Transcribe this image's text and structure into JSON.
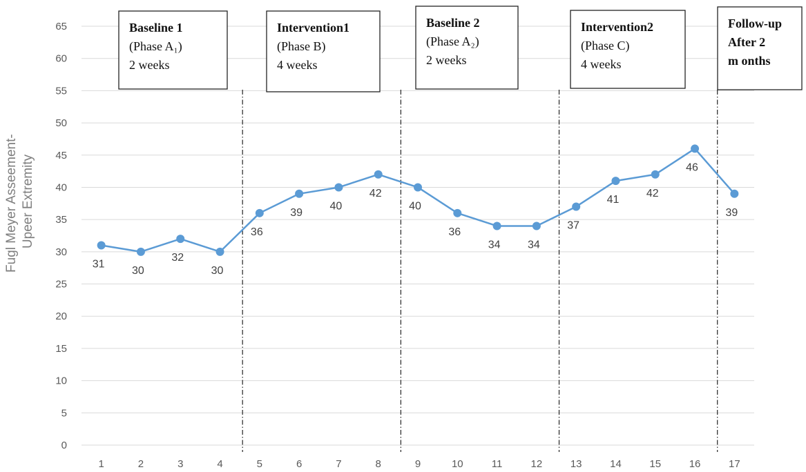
{
  "chart_data": {
    "type": "line",
    "x": [
      1,
      2,
      3,
      4,
      5,
      6,
      7,
      8,
      9,
      10,
      11,
      12,
      13,
      14,
      15,
      16,
      17
    ],
    "values": [
      31,
      30,
      32,
      30,
      36,
      39,
      40,
      42,
      40,
      36,
      34,
      34,
      37,
      41,
      42,
      46,
      39
    ],
    "data_labels": [
      "31",
      "30",
      "32",
      "30",
      "36",
      "39",
      "40",
      "42",
      "40",
      "36",
      "34",
      "34",
      "37",
      "41",
      "42",
      "46",
      "39"
    ],
    "ylabel_lines": [
      "Fugl Meyer Asseement-",
      "Upeer Extremity"
    ],
    "xlabel": "",
    "ylim": [
      0,
      65
    ],
    "yticks": [
      0,
      5,
      10,
      15,
      20,
      25,
      30,
      35,
      40,
      45,
      50,
      55,
      60,
      65
    ],
    "grid": true,
    "series_color": "#5b9bd5",
    "phase_dividers_after_x": [
      4,
      8,
      12,
      16
    ],
    "phases": [
      {
        "lines": [
          "Baseline 1",
          "(Phase A₁)",
          "2 weeks"
        ]
      },
      {
        "lines": [
          "Intervention1",
          "(Phase B)",
          "4 weeks"
        ]
      },
      {
        "lines": [
          "Baseline 2",
          "(Phase A₂)",
          "2 weeks"
        ]
      },
      {
        "lines": [
          "Intervention2",
          "(Phase C)",
          "4 weeks"
        ]
      },
      {
        "lines": [
          "Follow-up",
          "After 2",
          "m onths"
        ]
      }
    ]
  }
}
